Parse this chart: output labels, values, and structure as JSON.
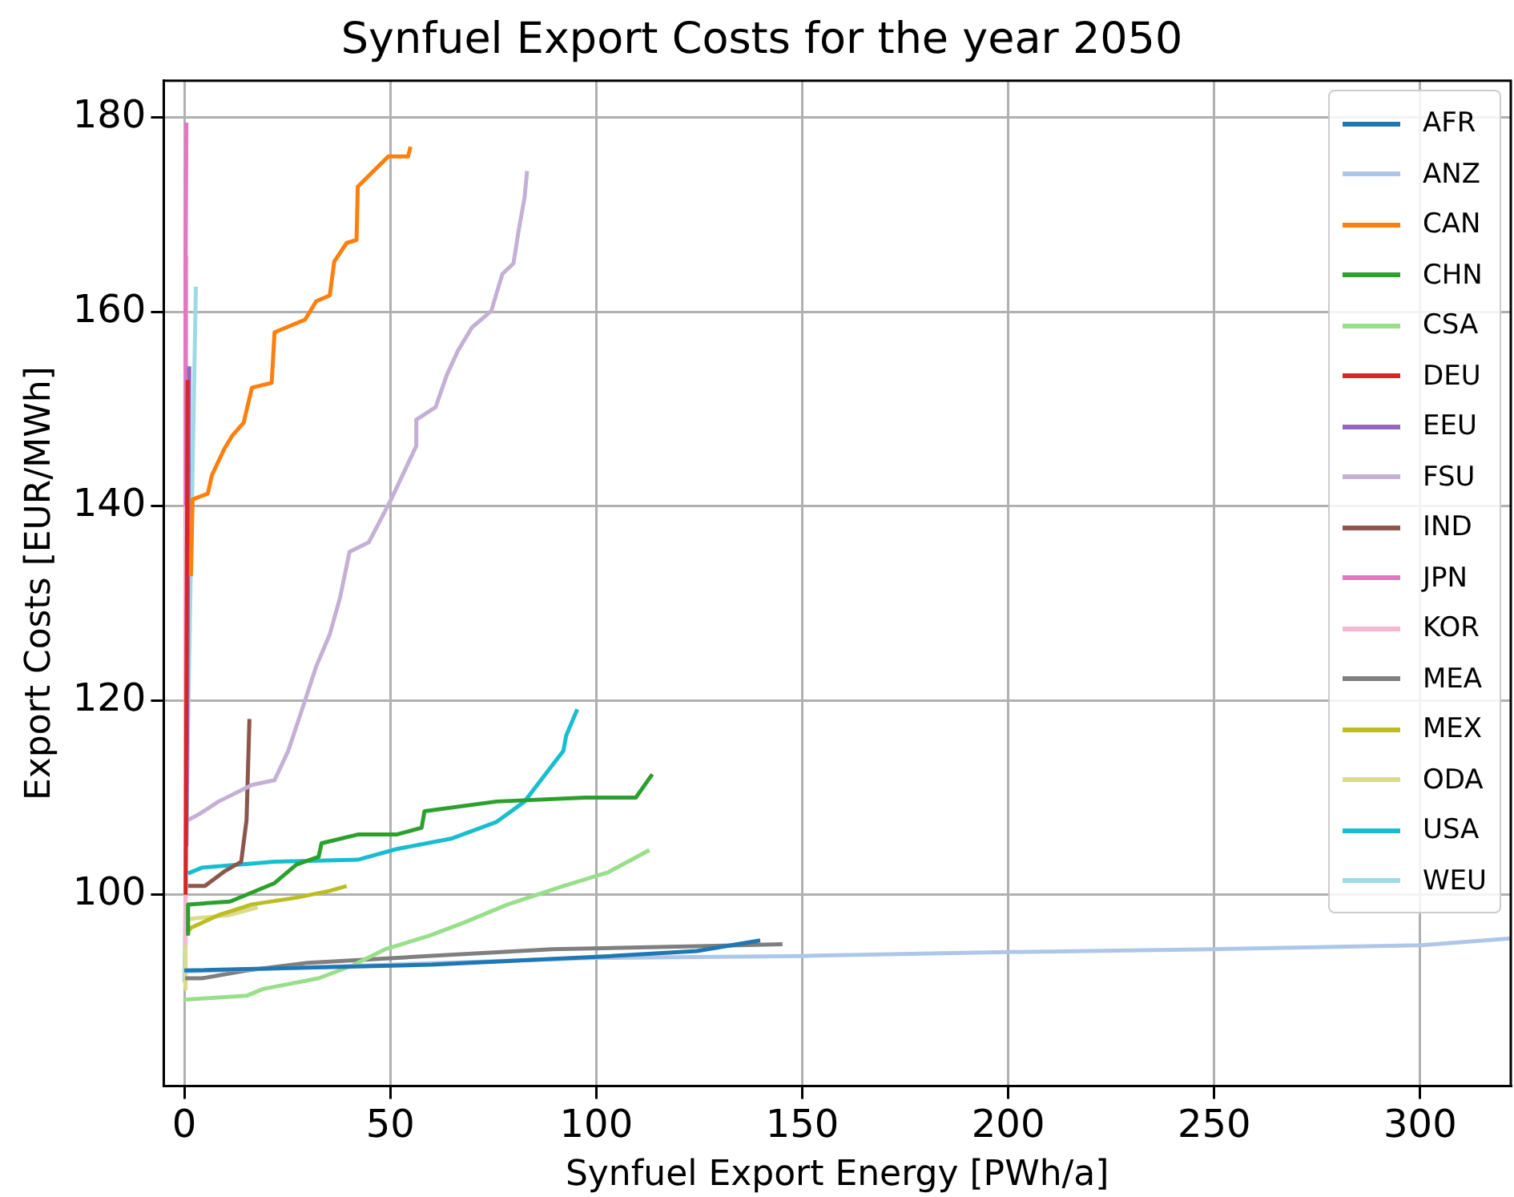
{
  "chart_data": {
    "type": "line",
    "title": "Synfuel Export Costs for the year 2050",
    "xlabel": "Synfuel Export Energy [PWh/a]",
    "ylabel": "Export Costs [EUR/MWh]",
    "xlim": [
      -5,
      322
    ],
    "ylim": [
      80.3,
      183.8
    ],
    "xticks": [
      0,
      50,
      100,
      150,
      200,
      250,
      300
    ],
    "yticks": [
      100,
      120,
      140,
      160,
      180
    ],
    "grid": true,
    "legend": "top right",
    "marker": "none",
    "line_style": "solid",
    "series": [
      {
        "name": "AFR",
        "color": "#1f77b4",
        "x": [
          0,
          60,
          100,
          124.4,
          139.8
        ],
        "values": [
          92.2,
          92.8,
          93.6,
          94.2,
          95.3
        ]
      },
      {
        "name": "ANZ",
        "color": "#aec7e8",
        "x": [
          0,
          50,
          100,
          150,
          200,
          250,
          300,
          322
        ],
        "values": [
          92.1,
          92.8,
          93.5,
          93.7,
          94.1,
          94.4,
          94.8,
          95.5
        ]
      },
      {
        "name": "CAN",
        "color": "#ff7f0e",
        "x": [
          1.6,
          2,
          5.7,
          6.7,
          9.7,
          11.7,
          14.4,
          16.4,
          21.2,
          21.9,
          29.3,
          32,
          35.3,
          36.4,
          39.4,
          41.8,
          42.1,
          49.5,
          54.3,
          54.9
        ],
        "values": [
          132.8,
          140.7,
          141.3,
          143.2,
          145.9,
          147.3,
          148.6,
          152.2,
          152.7,
          157.9,
          159.2,
          161.1,
          161.7,
          165.2,
          167.1,
          167.4,
          172.9,
          176,
          176,
          177
        ]
      },
      {
        "name": "CHN",
        "color": "#2ca02c",
        "x": [
          0.9,
          0.9,
          11.1,
          21.9,
          27.2,
          32.6,
          33.3,
          42.1,
          51.5,
          57.6,
          58.3,
          75.8,
          97.4,
          109.6,
          113.6
        ],
        "values": [
          95.8,
          99,
          99.3,
          101.2,
          103.1,
          103.9,
          105.3,
          106.2,
          106.2,
          106.9,
          108.6,
          109.6,
          110,
          110,
          112.4
        ]
      },
      {
        "name": "CSA",
        "color": "#98df8a",
        "x": [
          0,
          15.1,
          19.1,
          32.6,
          40.7,
          48.8,
          59.6,
          67.7,
          78.5,
          92,
          102.8,
          112.9
        ],
        "values": [
          89.2,
          89.6,
          90.3,
          91.4,
          92.7,
          94.4,
          95.8,
          97.1,
          99,
          100.9,
          102.3,
          104.6
        ]
      },
      {
        "name": "DEU",
        "color": "#d62728",
        "x": [
          0.3,
          0.8
        ],
        "values": [
          100,
          153
        ]
      },
      {
        "name": "EEU",
        "color": "#9467bd",
        "x": [
          0.5,
          1.2
        ],
        "values": [
          105,
          154.4
        ]
      },
      {
        "name": "FSU",
        "color": "#c5b0d5",
        "x": [
          0.9,
          3.6,
          8.3,
          16.4,
          21.9,
          25.2,
          29.3,
          32,
          35.3,
          37.8,
          40.1,
          44.8,
          50.2,
          56.3,
          56.3,
          61,
          63.7,
          66.4,
          69.8,
          74.5,
          77.2,
          79.9,
          81.2,
          82.6,
          83.2
        ],
        "values": [
          107.7,
          108.3,
          109.6,
          111.3,
          111.8,
          114.8,
          120,
          123.5,
          126.8,
          130.6,
          135.3,
          136.3,
          140.7,
          146.2,
          148.9,
          150.2,
          153.5,
          156,
          158.4,
          160.1,
          163.9,
          165,
          168.5,
          171.8,
          174.5
        ]
      },
      {
        "name": "IND",
        "color": "#8c564b",
        "x": [
          0.9,
          5,
          9.7,
          13.8,
          15.1,
          15.8
        ],
        "values": [
          100.9,
          100.9,
          102.4,
          103.4,
          107.7,
          118.1
        ]
      },
      {
        "name": "JPN",
        "color": "#e377c2",
        "x": [
          0.2,
          0.3,
          0.5
        ],
        "values": [
          140,
          165,
          179.5
        ]
      },
      {
        "name": "KOR",
        "color": "#f7b6d2",
        "x": [
          0.1,
          0.3,
          0.5
        ],
        "values": [
          95,
          130,
          165.8
        ]
      },
      {
        "name": "MEA",
        "color": "#7f7f7f",
        "x": [
          0.2,
          4.3,
          15.1,
          30,
          55.6,
          89.3,
          124.4,
          145.2
        ],
        "values": [
          91.4,
          91.4,
          92.2,
          93,
          93.6,
          94.4,
          94.7,
          94.9
        ]
      },
      {
        "name": "MEX",
        "color": "#bcbd22",
        "x": [
          0.2,
          1.6,
          8.3,
          16.4,
          27.2,
          35.3,
          39.4
        ],
        "values": [
          95.7,
          96.6,
          97.9,
          99,
          99.7,
          100.4,
          100.9
        ]
      },
      {
        "name": "ODA",
        "color": "#dbdb8d",
        "x": [
          0,
          0.3,
          1,
          10.7,
          17.8
        ],
        "values": [
          90.3,
          95.8,
          97.5,
          97.9,
          98.7
        ]
      },
      {
        "name": "USA",
        "color": "#17becf",
        "x": [
          0.9,
          4.3,
          21.9,
          42.1,
          51.5,
          65,
          75.8,
          82.6,
          88,
          92,
          92.7,
          95.4
        ],
        "values": [
          102.2,
          102.8,
          103.4,
          103.6,
          104.7,
          105.8,
          107.5,
          109.6,
          112.6,
          114.8,
          116.4,
          119.1
        ]
      },
      {
        "name": "WEU",
        "color": "#9edae5",
        "x": [
          0,
          1,
          2.8
        ],
        "values": [
          91,
          120,
          162.6
        ]
      }
    ]
  }
}
